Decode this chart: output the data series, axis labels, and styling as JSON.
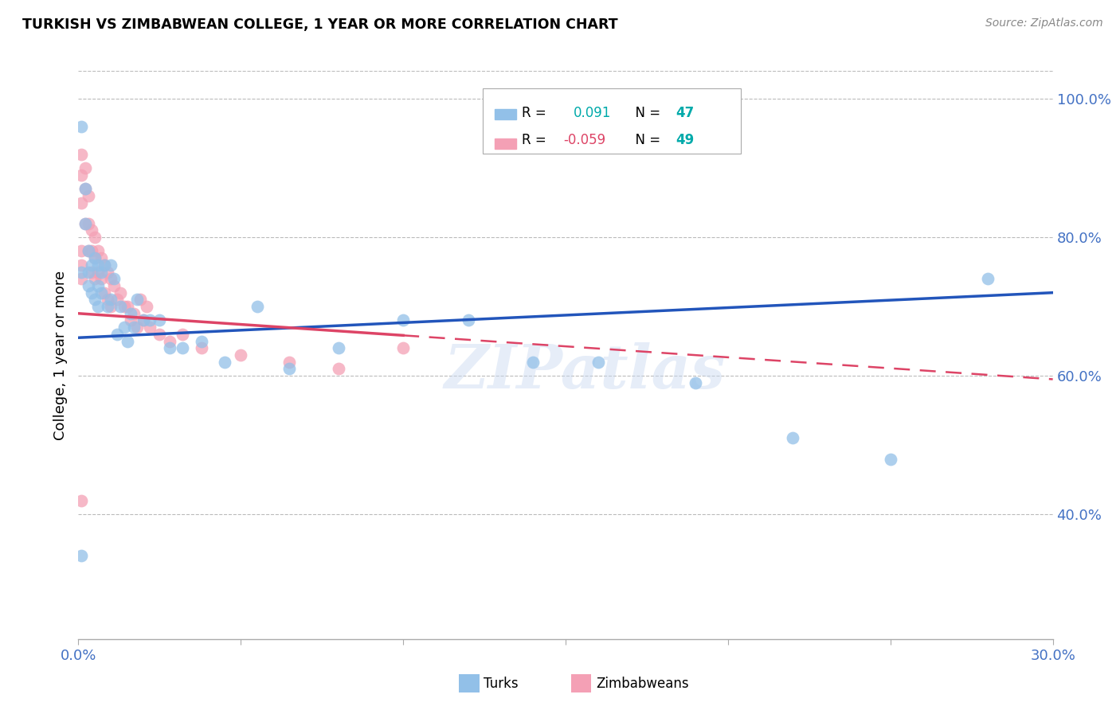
{
  "title": "TURKISH VS ZIMBABWEAN COLLEGE, 1 YEAR OR MORE CORRELATION CHART",
  "source": "Source: ZipAtlas.com",
  "ylabel": "College, 1 year or more",
  "xlim": [
    0.0,
    0.3
  ],
  "ylim": [
    0.22,
    1.04
  ],
  "xticks": [
    0.0,
    0.05,
    0.1,
    0.15,
    0.2,
    0.25,
    0.3
  ],
  "yticks_right": [
    0.4,
    0.6,
    0.8,
    1.0
  ],
  "turks_R": 0.091,
  "turks_N": 47,
  "zimbabweans_R": -0.059,
  "zimbabweans_N": 49,
  "turks_color": "#92C0E8",
  "zimbabweans_color": "#F4A0B5",
  "turks_line_color": "#2255BB",
  "zimbabweans_line_color": "#DD4466",
  "watermark": "ZIPatlas",
  "turks_x": [
    0.001,
    0.001,
    0.002,
    0.002,
    0.003,
    0.003,
    0.003,
    0.004,
    0.004,
    0.005,
    0.005,
    0.006,
    0.006,
    0.006,
    0.007,
    0.007,
    0.008,
    0.009,
    0.01,
    0.01,
    0.011,
    0.012,
    0.013,
    0.014,
    0.015,
    0.016,
    0.017,
    0.018,
    0.02,
    0.022,
    0.025,
    0.028,
    0.032,
    0.038,
    0.045,
    0.055,
    0.065,
    0.08,
    0.1,
    0.12,
    0.14,
    0.16,
    0.19,
    0.22,
    0.25,
    0.28,
    0.001
  ],
  "turks_y": [
    0.96,
    0.75,
    0.87,
    0.82,
    0.78,
    0.75,
    0.73,
    0.76,
    0.72,
    0.77,
    0.71,
    0.76,
    0.73,
    0.7,
    0.75,
    0.72,
    0.76,
    0.7,
    0.76,
    0.71,
    0.74,
    0.66,
    0.7,
    0.67,
    0.65,
    0.69,
    0.67,
    0.71,
    0.68,
    0.68,
    0.68,
    0.64,
    0.64,
    0.65,
    0.62,
    0.7,
    0.61,
    0.64,
    0.68,
    0.68,
    0.62,
    0.62,
    0.59,
    0.51,
    0.48,
    0.74,
    0.34
  ],
  "zimbabweans_x": [
    0.001,
    0.001,
    0.001,
    0.002,
    0.002,
    0.002,
    0.003,
    0.003,
    0.003,
    0.004,
    0.004,
    0.004,
    0.005,
    0.005,
    0.005,
    0.006,
    0.006,
    0.007,
    0.007,
    0.008,
    0.008,
    0.009,
    0.009,
    0.01,
    0.01,
    0.011,
    0.012,
    0.013,
    0.014,
    0.015,
    0.016,
    0.017,
    0.018,
    0.019,
    0.02,
    0.021,
    0.022,
    0.025,
    0.028,
    0.032,
    0.038,
    0.05,
    0.065,
    0.08,
    0.1,
    0.001,
    0.001,
    0.001,
    0.001
  ],
  "zimbabweans_y": [
    0.92,
    0.89,
    0.85,
    0.9,
    0.87,
    0.82,
    0.86,
    0.82,
    0.78,
    0.81,
    0.78,
    0.75,
    0.8,
    0.77,
    0.74,
    0.78,
    0.75,
    0.77,
    0.74,
    0.76,
    0.72,
    0.75,
    0.71,
    0.74,
    0.7,
    0.73,
    0.71,
    0.72,
    0.7,
    0.7,
    0.68,
    0.69,
    0.67,
    0.71,
    0.68,
    0.7,
    0.67,
    0.66,
    0.65,
    0.66,
    0.64,
    0.63,
    0.62,
    0.61,
    0.64,
    0.78,
    0.76,
    0.74,
    0.42
  ]
}
